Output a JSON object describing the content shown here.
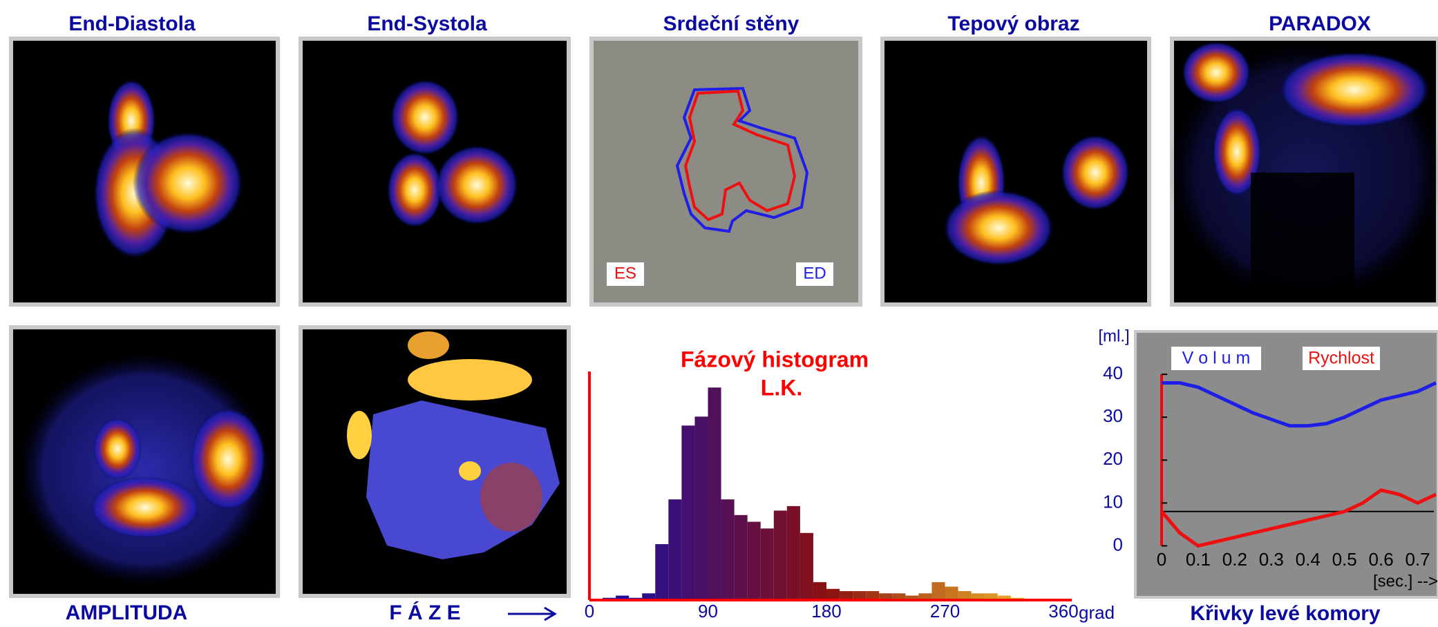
{
  "panels": {
    "top": [
      "End-Diastola",
      "End-Systola",
      "Srdeční stěny",
      "Tepový obraz",
      "PARADOX"
    ],
    "bottom": [
      "AMPLITUDA",
      "F Á Z E"
    ]
  },
  "walls_legend": [
    "ES",
    "ED"
  ],
  "chart_data": [
    {
      "type": "histogram",
      "title": "Fázový histogram",
      "subtitle": "L.K.",
      "x_unit": "grad",
      "bins": [
        0,
        10,
        20,
        30,
        40,
        50,
        60,
        70,
        80,
        90,
        100,
        110,
        120,
        130,
        140,
        150,
        160,
        170,
        180,
        190,
        200,
        210,
        220,
        230,
        240,
        250,
        260,
        270,
        280,
        290,
        300,
        310,
        320,
        330,
        340,
        350,
        360
      ],
      "counts": [
        0,
        1,
        2,
        1,
        3,
        25,
        45,
        78,
        82,
        95,
        45,
        38,
        35,
        32,
        40,
        42,
        30,
        8,
        5,
        4,
        4,
        4,
        3,
        3,
        2,
        3,
        8,
        6,
        4,
        3,
        3,
        2,
        1,
        0,
        0,
        0
      ],
      "xlim": [
        0,
        360
      ],
      "xticks": [
        0,
        90,
        180,
        270,
        360
      ],
      "ylim": [
        0,
        100
      ],
      "colormap": [
        "#1010b0",
        "#8a1010",
        "#ffd030"
      ],
      "axis_color": "#ff0000"
    },
    {
      "type": "line",
      "title": "Křivky levé komory",
      "y_label": "[ml.]",
      "x_label": "[sec.] -->",
      "x": [
        0,
        0.05,
        0.1,
        0.15,
        0.2,
        0.25,
        0.3,
        0.35,
        0.4,
        0.45,
        0.5,
        0.55,
        0.6,
        0.65,
        0.7,
        0.75
      ],
      "series": [
        {
          "name": "V o l u m",
          "color": "#1e1ee6",
          "values": [
            38,
            38,
            37,
            35,
            33,
            31,
            29.5,
            28,
            28,
            28.5,
            30,
            32,
            34,
            35,
            36,
            38
          ]
        },
        {
          "name": "Rychlost",
          "color": "#ee1010",
          "values": [
            8,
            3,
            0,
            1,
            2,
            3,
            4,
            5,
            6,
            7,
            8,
            10,
            13,
            12,
            10,
            12
          ]
        }
      ],
      "baseline": 8,
      "xlim": [
        0,
        0.75
      ],
      "ylim": [
        -12,
        50
      ],
      "xticks": [
        0,
        0.1,
        0.2,
        0.3,
        0.4,
        0.5,
        0.6,
        0.7
      ],
      "yticks": [
        0,
        10,
        20,
        30,
        40
      ],
      "background": "#8c8c8c",
      "y_axis_color": "#ff0000"
    }
  ]
}
